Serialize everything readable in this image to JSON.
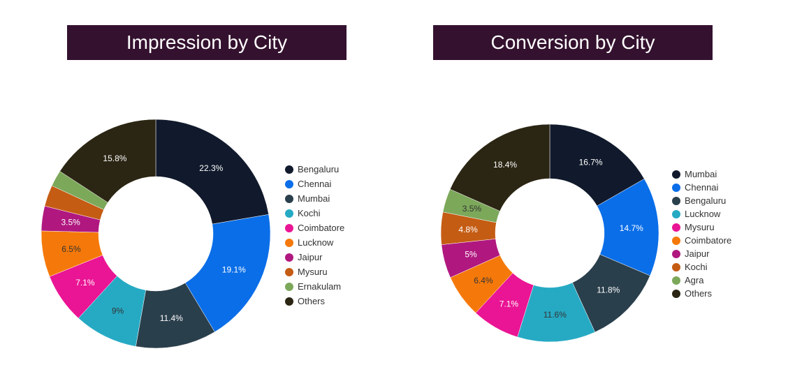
{
  "chart_data": [
    {
      "type": "pie",
      "variant": "donut",
      "title": "Impression by City",
      "legend_position": "right",
      "categories": [
        "Bengaluru",
        "Chennai",
        "Mumbai",
        "Kochi",
        "Coimbatore",
        "Lucknow",
        "Jaipur",
        "Mysuru",
        "Ernakulam",
        "Others"
      ],
      "values": [
        22.3,
        19.1,
        11.4,
        9,
        7.1,
        6.5,
        3.5,
        3.0,
        2.3,
        15.8
      ],
      "labels": [
        "22.3%",
        "19.1%",
        "11.4%",
        "9%",
        "7.1%",
        "6.5%",
        "3.5%",
        "",
        "",
        "15.8%"
      ],
      "colors": [
        "#111a2c",
        "#0a6ee8",
        "#2a3f4c",
        "#26aac4",
        "#ea1594",
        "#f5790a",
        "#b0187f",
        "#c55c14",
        "#7ca85a",
        "#2b2513"
      ]
    },
    {
      "type": "pie",
      "variant": "donut",
      "title": "Conversion by City",
      "legend_position": "right",
      "categories": [
        "Mumbai",
        "Chennai",
        "Bengaluru",
        "Lucknow",
        "Mysuru",
        "Coimbatore",
        "Jaipur",
        "Kochi",
        "Agra",
        "Others"
      ],
      "values": [
        16.7,
        14.7,
        11.8,
        11.6,
        7.1,
        6.4,
        5,
        4.8,
        3.5,
        18.4
      ],
      "labels": [
        "16.7%",
        "14.7%",
        "11.8%",
        "11.6%",
        "7.1%",
        "6.4%",
        "5%",
        "4.8%",
        "3.5%",
        "18.4%"
      ],
      "colors": [
        "#111a2c",
        "#0a6ee8",
        "#2a3f4c",
        "#26aac4",
        "#ea1594",
        "#f5790a",
        "#b0187f",
        "#c55c14",
        "#7ca85a",
        "#2b2513"
      ]
    }
  ]
}
